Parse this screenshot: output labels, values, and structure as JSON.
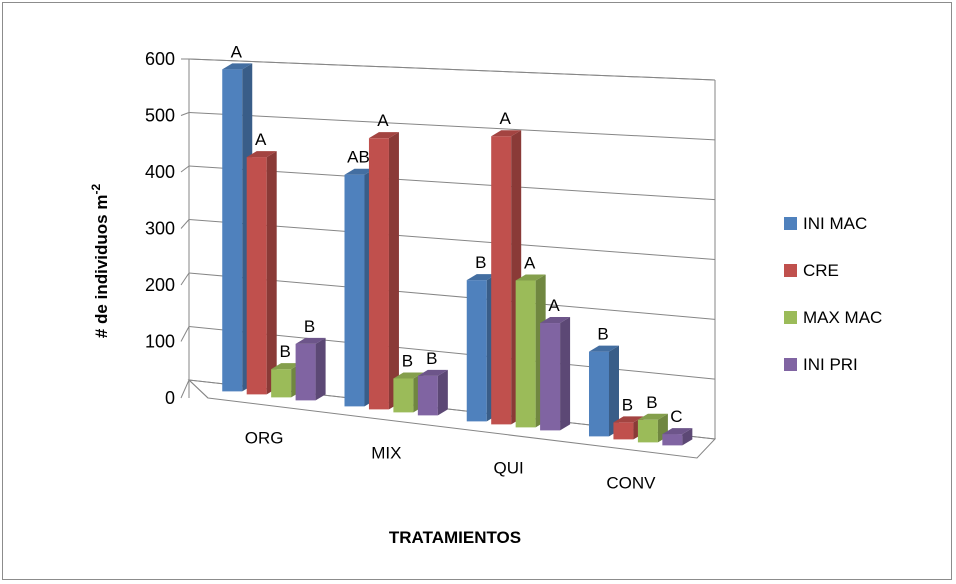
{
  "chart_data": {
    "type": "bar",
    "subtype": "3d-clustered-column",
    "categories": [
      "ORG",
      "MIX",
      "QUI",
      "CONV"
    ],
    "series": [
      {
        "name": "INI MAC",
        "color": "#4f81bd",
        "values": [
          570,
          410,
          250,
          150
        ],
        "labels": [
          "A",
          "AB",
          "B",
          "B"
        ]
      },
      {
        "name": "CRE",
        "color": "#c0504d",
        "values": [
          420,
          480,
          510,
          30
        ],
        "labels": [
          "A",
          "A",
          "A",
          "B"
        ]
      },
      {
        "name": "MAX MAC",
        "color": "#9bbb59",
        "values": [
          50,
          60,
          260,
          40
        ],
        "labels": [
          "B",
          "B",
          "A",
          "B"
        ]
      },
      {
        "name": "INI PRI",
        "color": "#8064a2",
        "values": [
          100,
          70,
          190,
          20
        ],
        "labels": [
          "B",
          "B",
          "A",
          "C"
        ]
      }
    ],
    "yticks": [
      "600",
      "500",
      "400",
      "300",
      "200",
      "100",
      "0"
    ],
    "xlabel": "TRATAMIENTOS",
    "ylabel": "# de individuos m",
    "ylabel_sup": "-2",
    "ylim": [
      0,
      600
    ],
    "grid": true,
    "legend": "right"
  }
}
